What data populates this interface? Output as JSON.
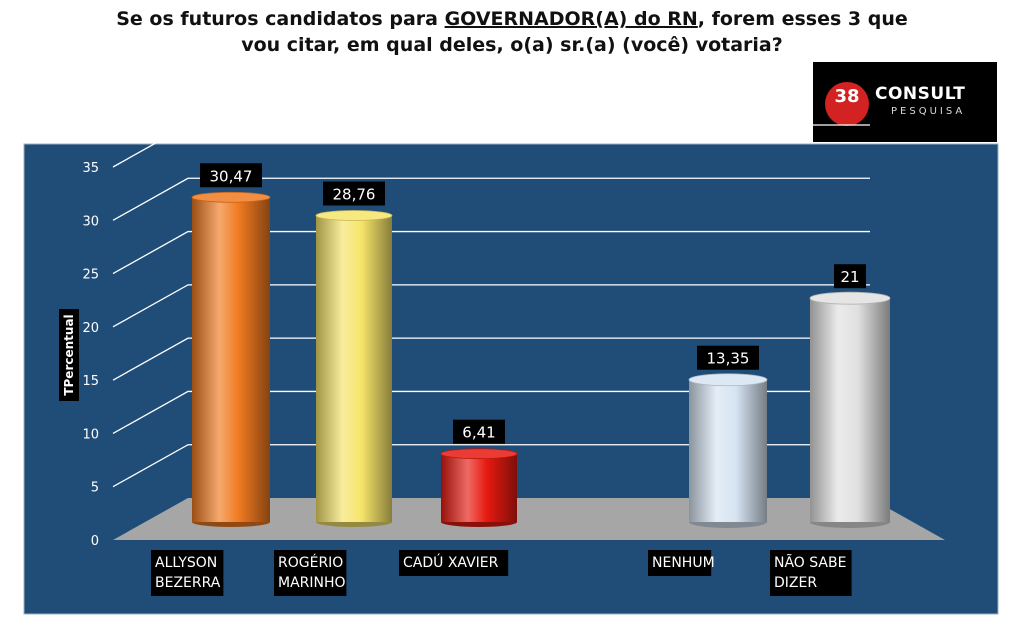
{
  "title": {
    "line1_before": "Se os futuros candidatos para ",
    "line1_underlined": "GOVERNADOR(A) do RN",
    "line1_after": ", forem esses 3 que",
    "line2": "vou citar, em qual deles, o(a) sr.(a) (você) votaria?"
  },
  "logo": {
    "number": "38",
    "name": "CONSULT",
    "subtitle": "PESQUISA"
  },
  "colors": {
    "panel_background": "#1f4d78",
    "floor": "#a6a6a6",
    "gridline": "#ffffff",
    "bar_orange": "#f07a20",
    "bar_yellow": "#f6e46a",
    "bar_red": "#e61a10",
    "bar_light_blue": "#d6e4f2",
    "bar_light_gray": "#e0e0e0"
  },
  "chart_data": {
    "type": "bar",
    "title": "",
    "xlabel": "",
    "ylabel": "TPercentual",
    "ylim": [
      0,
      35
    ],
    "yticks": [
      0,
      5,
      10,
      15,
      20,
      25,
      30,
      35
    ],
    "grid": true,
    "legend": "none",
    "categories": [
      {
        "line1": "ALLYSON",
        "line2": "BEZERRA"
      },
      {
        "line1": "ROGÉRIO",
        "line2": "MARINHO"
      },
      {
        "line1": "CADÚ XAVIER",
        "line2": ""
      },
      {
        "line1": "NENHUM",
        "line2": ""
      },
      {
        "line1": "NÃO SABE",
        "line2": "DIZER"
      }
    ],
    "values": [
      30.47,
      28.76,
      6.41,
      13.35,
      21
    ],
    "data_labels": [
      "30,47",
      "28,76",
      "6,41",
      "13,35",
      "21"
    ],
    "bar_colors": [
      "bar_orange",
      "bar_yellow",
      "bar_red",
      "bar_light_blue",
      "bar_light_gray"
    ]
  }
}
